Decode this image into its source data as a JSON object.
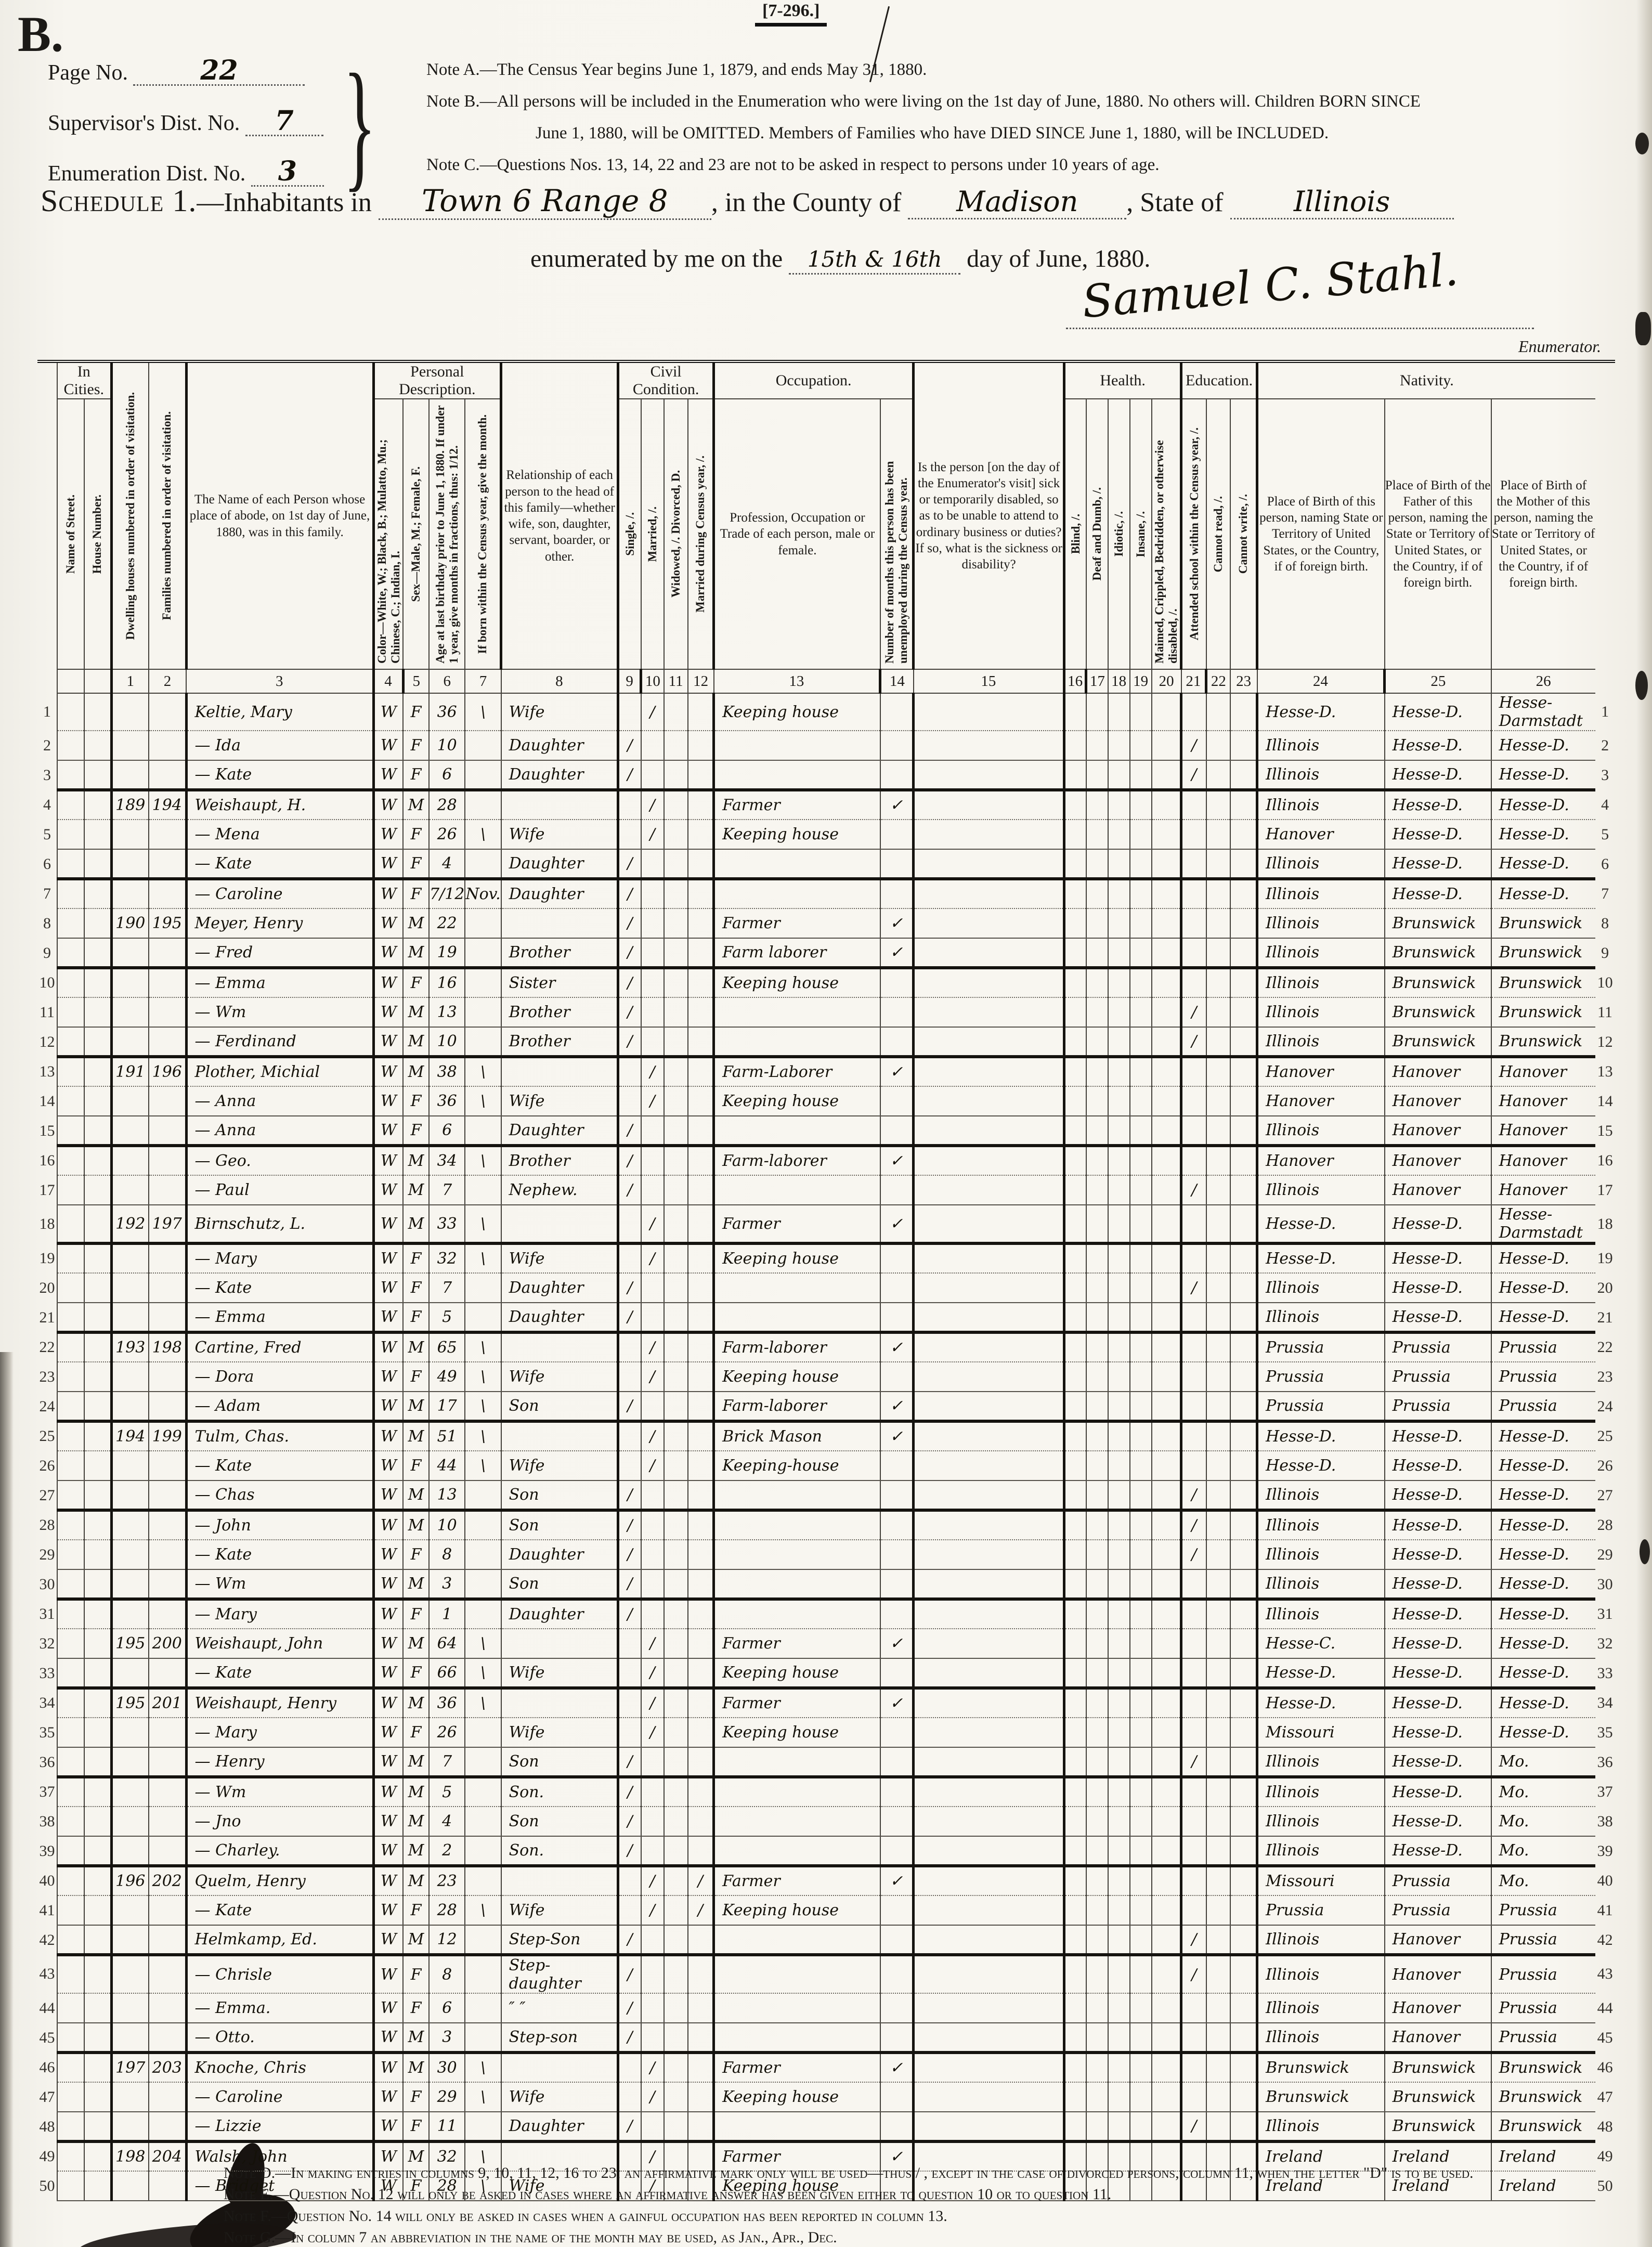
{
  "meta": {
    "corner_letter": "B.",
    "form_code": "[7-296.]",
    "enumerator_label": "Enumerator."
  },
  "header": {
    "page_no_label": "Page No.",
    "page_no": "22",
    "supervisor_label": "Supervisor's Dist. No.",
    "supervisor_no": "7",
    "enumeration_label": "Enumeration Dist. No.",
    "enumeration_no": "3",
    "note_a": "Note A.—The Census Year begins June 1, 1879, and ends May 31, 1880.",
    "note_b1": "Note B.—All persons will be included in the Enumeration who were living on the 1st day of June, 1880.  No others will.  Children BORN SINCE",
    "note_b2": "June 1, 1880, will be OMITTED.  Members of Families who have DIED SINCE June 1, 1880, will be INCLUDED.",
    "note_c": "Note C.—Questions Nos. 13, 14, 22 and 23 are not to be asked in respect to persons under 10 years of age.",
    "schedule_title": "Schedule 1.",
    "schedule_rest": "—Inhabitants in",
    "place_value": "Town 6 Range 8",
    "county_label": ", in the County of",
    "county_value": "Madison",
    "state_label": ", State of",
    "state_value": "Illinois",
    "enum_prefix": "enumerated by me on the",
    "enum_date": "15th & 16th",
    "enum_suffix": "day of June, 1880.",
    "signature": "Samuel C. Stahl."
  },
  "table": {
    "groups": {
      "in_cities": "In Cities.",
      "personal": "Personal Description.",
      "civil": "Civil Condition.",
      "occupation": "Occupation.",
      "health": "Health.",
      "education": "Education.",
      "nativity": "Nativity."
    },
    "columns": {
      "street": "Name of Street.",
      "house": "House Number.",
      "c1": "Dwelling houses numbered in order of visitation.",
      "c2": "Families numbered in order of visitation.",
      "c3": "The Name of each Person whose place of abode, on 1st day of June, 1880, was in this family.",
      "c4": "Color—White, W.; Black, B.; Mulatto, Mu.; Chinese, C.; Indian, I.",
      "c5": "Sex—Male, M.; Female, F.",
      "c6": "Age at last birthday prior to June 1, 1880.  If under 1 year, give months in fractions, thus: 1/12.",
      "c7": "If born within the Census year, give the month.",
      "c8": "Relationship of each person to the head of this family—whether wife, son, daughter, servant, boarder, or other.",
      "c9": "Single, /.",
      "c10": "Married, /.",
      "c11": "Widowed, /.  Divorced, D.",
      "c12": "Married during Census year, /.",
      "c13": "Profession, Occupation or Trade of each person, male or female.",
      "c14": "Number of months this person has been unemployed during the Census year.",
      "c15": "Is the person [on the day of the Enumerator's visit] sick or temporarily disabled, so as to be unable to attend to ordinary business or duties?  If so, what is the sickness or disability?",
      "c16": "Blind, /.",
      "c17": "Deaf and Dumb, /.",
      "c18": "Idiotic, /.",
      "c19": "Insane, /.",
      "c20": "Maimed, Crippled, Bedridden, or otherwise disabled, /.",
      "c21": "Attended school within the Census year, /.",
      "c22": "Cannot read, /.",
      "c23": "Cannot write, /.",
      "c24": "Place of Birth of this person, naming State or Territory of United States, or the Country, if of foreign birth.",
      "c25": "Place of Birth of the Father of this person, naming the State or Territory of United States, or the Country, if of foreign birth.",
      "c26": "Place of Birth of the Mother of this person, naming the State or Territory of United States, or the Country, if of foreign birth."
    },
    "numbers": [
      "1",
      "2",
      "3",
      "4",
      "5",
      "6",
      "7",
      "8",
      "9",
      "10",
      "11",
      "12",
      "13",
      "14",
      "15",
      "16",
      "17",
      "18",
      "19",
      "20",
      "21",
      "22",
      "23",
      "24",
      "25",
      "26"
    ],
    "rows": [
      {
        "n": 1,
        "nm": "Keltie, Mary",
        "c": "W",
        "s": "F",
        "a": "36",
        "m7": "\\",
        "r": "Wife",
        "c10": "/",
        "oc": "Keeping house",
        "p1": "Hesse-D.",
        "p2": "Hesse-D.",
        "p3": "Hesse-Darmstadt"
      },
      {
        "n": 2,
        "nm": "— Ida",
        "c": "W",
        "s": "F",
        "a": "10",
        "r": "Daughter",
        "c9": "/",
        "c21": "/",
        "p1": "Illinois",
        "p2": "Hesse-D.",
        "p3": "Hesse-D."
      },
      {
        "n": 3,
        "nm": "— Kate",
        "c": "W",
        "s": "F",
        "a": "6",
        "r": "Daughter",
        "c9": "/",
        "c21": "/",
        "p1": "Illinois",
        "p2": "Hesse-D.",
        "p3": "Hesse-D."
      },
      {
        "n": 4,
        "d": "189",
        "f": "194",
        "nm": "Weishaupt, H.",
        "c": "W",
        "s": "M",
        "a": "28",
        "c10": "/",
        "oc": "Farmer",
        "c14": "✓",
        "p1": "Illinois",
        "p2": "Hesse-D.",
        "p3": "Hesse-D."
      },
      {
        "n": 5,
        "nm": "— Mena",
        "c": "W",
        "s": "F",
        "a": "26",
        "m7": "\\",
        "r": "Wife",
        "c10": "/",
        "oc": "Keeping house",
        "p1": "Hanover",
        "p2": "Hesse-D.",
        "p3": "Hesse-D."
      },
      {
        "n": 6,
        "nm": "— Kate",
        "c": "W",
        "s": "F",
        "a": "4",
        "r": "Daughter",
        "c9": "/",
        "p1": "Illinois",
        "p2": "Hesse-D.",
        "p3": "Hesse-D."
      },
      {
        "n": 7,
        "nm": "— Caroline",
        "c": "W",
        "s": "F",
        "a": "7/12",
        "m7": "Nov.",
        "r": "Daughter",
        "c9": "/",
        "p1": "Illinois",
        "p2": "Hesse-D.",
        "p3": "Hesse-D."
      },
      {
        "n": 8,
        "d": "190",
        "f": "195",
        "nm": "Meyer, Henry",
        "c": "W",
        "s": "M",
        "a": "22",
        "c9": "/",
        "oc": "Farmer",
        "c14": "✓",
        "p1": "Illinois",
        "p2": "Brunswick",
        "p3": "Brunswick"
      },
      {
        "n": 9,
        "nm": "— Fred",
        "c": "W",
        "s": "M",
        "a": "19",
        "r": "Brother",
        "c9": "/",
        "oc": "Farm laborer",
        "c14": "✓",
        "p1": "Illinois",
        "p2": "Brunswick",
        "p3": "Brunswick"
      },
      {
        "n": 10,
        "nm": "— Emma",
        "c": "W",
        "s": "F",
        "a": "16",
        "r": "Sister",
        "c9": "/",
        "oc": "Keeping house",
        "p1": "Illinois",
        "p2": "Brunswick",
        "p3": "Brunswick"
      },
      {
        "n": 11,
        "nm": "— Wm",
        "c": "W",
        "s": "M",
        "a": "13",
        "r": "Brother",
        "c9": "/",
        "c21": "/",
        "p1": "Illinois",
        "p2": "Brunswick",
        "p3": "Brunswick"
      },
      {
        "n": 12,
        "nm": "— Ferdinand",
        "c": "W",
        "s": "M",
        "a": "10",
        "r": "Brother",
        "c9": "/",
        "c21": "/",
        "p1": "Illinois",
        "p2": "Brunswick",
        "p3": "Brunswick"
      },
      {
        "n": 13,
        "d": "191",
        "f": "196",
        "nm": "Plother, Michial",
        "c": "W",
        "s": "M",
        "a": "38",
        "m7": "\\",
        "c10": "/",
        "oc": "Farm-Laborer",
        "c14": "✓",
        "p1": "Hanover",
        "p2": "Hanover",
        "p3": "Hanover"
      },
      {
        "n": 14,
        "nm": "— Anna",
        "c": "W",
        "s": "F",
        "a": "36",
        "m7": "\\",
        "r": "Wife",
        "c10": "/",
        "oc": "Keeping house",
        "p1": "Hanover",
        "p2": "Hanover",
        "p3": "Hanover"
      },
      {
        "n": 15,
        "nm": "— Anna",
        "c": "W",
        "s": "F",
        "a": "6",
        "r": "Daughter",
        "c9": "/",
        "p1": "Illinois",
        "p2": "Hanover",
        "p3": "Hanover"
      },
      {
        "n": 16,
        "nm": "— Geo.",
        "c": "W",
        "s": "M",
        "a": "34",
        "m7": "\\",
        "r": "Brother",
        "c9": "/",
        "oc": "Farm-laborer",
        "c14": "✓",
        "p1": "Hanover",
        "p2": "Hanover",
        "p3": "Hanover"
      },
      {
        "n": 17,
        "nm": "— Paul",
        "c": "W",
        "s": "M",
        "a": "7",
        "r": "Nephew.",
        "c9": "/",
        "c21": "/",
        "p1": "Illinois",
        "p2": "Hanover",
        "p3": "Hanover"
      },
      {
        "n": 18,
        "d": "192",
        "f": "197",
        "nm": "Birnschutz, L.",
        "c": "W",
        "s": "M",
        "a": "33",
        "m7": "\\",
        "c10": "/",
        "oc": "Farmer",
        "c14": "✓",
        "p1": "Hesse-D.",
        "p2": "Hesse-D.",
        "p3": "Hesse-Darmstadt"
      },
      {
        "n": 19,
        "nm": "— Mary",
        "c": "W",
        "s": "F",
        "a": "32",
        "m7": "\\",
        "r": "Wife",
        "c10": "/",
        "oc": "Keeping house",
        "p1": "Hesse-D.",
        "p2": "Hesse-D.",
        "p3": "Hesse-D."
      },
      {
        "n": 20,
        "nm": "— Kate",
        "c": "W",
        "s": "F",
        "a": "7",
        "r": "Daughter",
        "c9": "/",
        "c21": "/",
        "p1": "Illinois",
        "p2": "Hesse-D.",
        "p3": "Hesse-D."
      },
      {
        "n": 21,
        "nm": "— Emma",
        "c": "W",
        "s": "F",
        "a": "5",
        "r": "Daughter",
        "c9": "/",
        "p1": "Illinois",
        "p2": "Hesse-D.",
        "p3": "Hesse-D."
      },
      {
        "n": 22,
        "d": "193",
        "f": "198",
        "nm": "Cartine, Fred",
        "c": "W",
        "s": "M",
        "a": "65",
        "m7": "\\",
        "c10": "/",
        "oc": "Farm-laborer",
        "c14": "✓",
        "p1": "Prussia",
        "p2": "Prussia",
        "p3": "Prussia"
      },
      {
        "n": 23,
        "nm": "— Dora",
        "c": "W",
        "s": "F",
        "a": "49",
        "m7": "\\",
        "r": "Wife",
        "c10": "/",
        "oc": "Keeping house",
        "p1": "Prussia",
        "p2": "Prussia",
        "p3": "Prussia"
      },
      {
        "n": 24,
        "nm": "— Adam",
        "c": "W",
        "s": "M",
        "a": "17",
        "m7": "\\",
        "r": "Son",
        "c9": "/",
        "oc": "Farm-laborer",
        "c14": "✓",
        "p1": "Prussia",
        "p2": "Prussia",
        "p3": "Prussia"
      },
      {
        "n": 25,
        "d": "194",
        "f": "199",
        "nm": "Tulm, Chas.",
        "c": "W",
        "s": "M",
        "a": "51",
        "m7": "\\",
        "c10": "/",
        "oc": "Brick Mason",
        "c14": "✓",
        "p1": "Hesse-D.",
        "p2": "Hesse-D.",
        "p3": "Hesse-D."
      },
      {
        "n": 26,
        "nm": "— Kate",
        "c": "W",
        "s": "F",
        "a": "44",
        "m7": "\\",
        "r": "Wife",
        "c10": "/",
        "oc": "Keeping-house",
        "p1": "Hesse-D.",
        "p2": "Hesse-D.",
        "p3": "Hesse-D."
      },
      {
        "n": 27,
        "nm": "— Chas",
        "c": "W",
        "s": "M",
        "a": "13",
        "r": "Son",
        "c9": "/",
        "c21": "/",
        "p1": "Illinois",
        "p2": "Hesse-D.",
        "p3": "Hesse-D."
      },
      {
        "n": 28,
        "nm": "— John",
        "c": "W",
        "s": "M",
        "a": "10",
        "r": "Son",
        "c9": "/",
        "c21": "/",
        "p1": "Illinois",
        "p2": "Hesse-D.",
        "p3": "Hesse-D."
      },
      {
        "n": 29,
        "nm": "— Kate",
        "c": "W",
        "s": "F",
        "a": "8",
        "r": "Daughter",
        "c9": "/",
        "c21": "/",
        "p1": "Illinois",
        "p2": "Hesse-D.",
        "p3": "Hesse-D."
      },
      {
        "n": 30,
        "nm": "— Wm",
        "c": "W",
        "s": "M",
        "a": "3",
        "r": "Son",
        "c9": "/",
        "p1": "Illinois",
        "p2": "Hesse-D.",
        "p3": "Hesse-D."
      },
      {
        "n": 31,
        "nm": "— Mary",
        "c": "W",
        "s": "F",
        "a": "1",
        "r": "Daughter",
        "c9": "/",
        "p1": "Illinois",
        "p2": "Hesse-D.",
        "p3": "Hesse-D."
      },
      {
        "n": 32,
        "d": "195",
        "f": "200",
        "nm": "Weishaupt, John",
        "c": "W",
        "s": "M",
        "a": "64",
        "m7": "\\",
        "c10": "/",
        "oc": "Farmer",
        "c14": "✓",
        "p1": "Hesse-C.",
        "p2": "Hesse-D.",
        "p3": "Hesse-D."
      },
      {
        "n": 33,
        "nm": "— Kate",
        "c": "W",
        "s": "F",
        "a": "66",
        "m7": "\\",
        "r": "Wife",
        "c10": "/",
        "oc": "Keeping house",
        "p1": "Hesse-D.",
        "p2": "Hesse-D.",
        "p3": "Hesse-D."
      },
      {
        "n": 34,
        "d": "195",
        "f": "201",
        "nm": "Weishaupt, Henry",
        "c": "W",
        "s": "M",
        "a": "36",
        "m7": "\\",
        "c10": "/",
        "oc": "Farmer",
        "c14": "✓",
        "p1": "Hesse-D.",
        "p2": "Hesse-D.",
        "p3": "Hesse-D."
      },
      {
        "n": 35,
        "nm": "— Mary",
        "c": "W",
        "s": "F",
        "a": "26",
        "r": "Wife",
        "c10": "/",
        "oc": "Keeping house",
        "p1": "Missouri",
        "p2": "Hesse-D.",
        "p3": "Hesse-D."
      },
      {
        "n": 36,
        "nm": "— Henry",
        "c": "W",
        "s": "M",
        "a": "7",
        "r": "Son",
        "c9": "/",
        "c21": "/",
        "p1": "Illinois",
        "p2": "Hesse-D.",
        "p3": "Mo."
      },
      {
        "n": 37,
        "nm": "— Wm",
        "c": "W",
        "s": "M",
        "a": "5",
        "r": "Son.",
        "c9": "/",
        "p1": "Illinois",
        "p2": "Hesse-D.",
        "p3": "Mo."
      },
      {
        "n": 38,
        "nm": "— Jno",
        "c": "W",
        "s": "M",
        "a": "4",
        "r": "Son",
        "c9": "/",
        "p1": "Illinois",
        "p2": "Hesse-D.",
        "p3": "Mo."
      },
      {
        "n": 39,
        "nm": "— Charley.",
        "c": "W",
        "s": "M",
        "a": "2",
        "r": "Son.",
        "c9": "/",
        "p1": "Illinois",
        "p2": "Hesse-D.",
        "p3": "Mo."
      },
      {
        "n": 40,
        "d": "196",
        "f": "202",
        "nm": "Quelm, Henry",
        "c": "W",
        "s": "M",
        "a": "23",
        "c10": "/",
        "c12": "/",
        "oc": "Farmer",
        "c14": "✓",
        "p1": "Missouri",
        "p2": "Prussia",
        "p3": "Mo."
      },
      {
        "n": 41,
        "nm": "— Kate",
        "c": "W",
        "s": "F",
        "a": "28",
        "m7": "\\",
        "r": "Wife",
        "c10": "/",
        "c12": "/",
        "oc": "Keeping house",
        "p1": "Prussia",
        "p2": "Prussia",
        "p3": "Prussia"
      },
      {
        "n": 42,
        "nm": "Helmkamp, Ed.",
        "c": "W",
        "s": "M",
        "a": "12",
        "r": "Step-Son",
        "c9": "/",
        "c21": "/",
        "p1": "Illinois",
        "p2": "Hanover",
        "p3": "Prussia"
      },
      {
        "n": 43,
        "nm": "— Chrisle",
        "c": "W",
        "s": "F",
        "a": "8",
        "r": "Step-daughter",
        "c9": "/",
        "c21": "/",
        "p1": "Illinois",
        "p2": "Hanover",
        "p3": "Prussia"
      },
      {
        "n": 44,
        "nm": "— Emma.",
        "c": "W",
        "s": "F",
        "a": "6",
        "r": "″  ″",
        "c9": "/",
        "p1": "Illinois",
        "p2": "Hanover",
        "p3": "Prussia"
      },
      {
        "n": 45,
        "nm": "— Otto.",
        "c": "W",
        "s": "M",
        "a": "3",
        "r": "Step-son",
        "c9": "/",
        "p1": "Illinois",
        "p2": "Hanover",
        "p3": "Prussia"
      },
      {
        "n": 46,
        "d": "197",
        "f": "203",
        "nm": "Knoche, Chris",
        "c": "W",
        "s": "M",
        "a": "30",
        "m7": "\\",
        "c10": "/",
        "oc": "Farmer",
        "c14": "✓",
        "p1": "Brunswick",
        "p2": "Brunswick",
        "p3": "Brunswick"
      },
      {
        "n": 47,
        "nm": "— Caroline",
        "c": "W",
        "s": "F",
        "a": "29",
        "m7": "\\",
        "r": "Wife",
        "c10": "/",
        "oc": "Keeping house",
        "p1": "Brunswick",
        "p2": "Brunswick",
        "p3": "Brunswick"
      },
      {
        "n": 48,
        "nm": "— Lizzie",
        "c": "W",
        "s": "F",
        "a": "11",
        "r": "Daughter",
        "c9": "/",
        "c21": "/",
        "p1": "Illinois",
        "p2": "Brunswick",
        "p3": "Brunswick"
      },
      {
        "n": 49,
        "d": "198",
        "f": "204",
        "nm": "Walsh, John",
        "c": "W",
        "s": "M",
        "a": "32",
        "m7": "\\",
        "c10": "/",
        "oc": "Farmer",
        "c14": "✓",
        "p1": "Ireland",
        "p2": "Ireland",
        "p3": "Ireland"
      },
      {
        "n": 50,
        "nm": "— Bridget",
        "c": "W",
        "s": "F",
        "a": "28",
        "m7": "\\",
        "r": "Wife",
        "c10": "/",
        "oc": "Keeping house",
        "p1": "Ireland",
        "p2": "Ireland",
        "p3": "Ireland"
      }
    ]
  },
  "footer": {
    "note_d": "Note D.—In making entries in columns 9, 10, 11, 12, 16 to 23, an affirmative mark only will be used—thus / , except in the case of divorced persons, column 11, when the letter \"D\" is to be used.",
    "note_e": "Note E.—Question No. 12 will only be asked in cases where an affirmative answer has been given either to question 10 or to question 11.",
    "note_f": "Note F.—Question No. 14 will only be asked in cases when a gainful occupation has been reported in column 13.",
    "note_g": "Note G.—In column 7 an abbreviation in the name of the month may be used, as Jan., Apr., Dec."
  }
}
